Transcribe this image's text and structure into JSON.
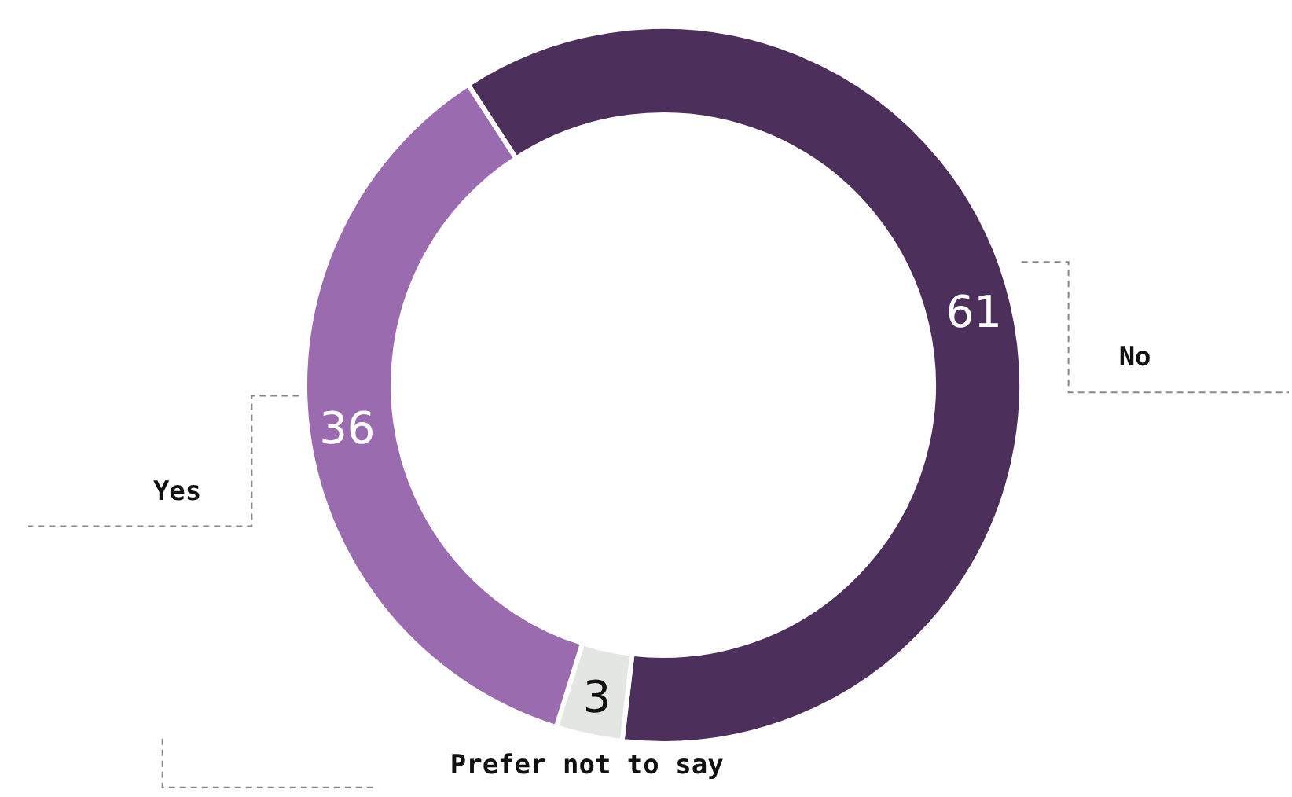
{
  "chart_data": {
    "type": "donut",
    "categories": [
      "No",
      "Prefer not to say",
      "Yes"
    ],
    "values": [
      61,
      3,
      36
    ],
    "colors": [
      "#4d2f5c",
      "#e4e6e4",
      "#9b6bb0"
    ],
    "data_labels": true,
    "legend": false
  }
}
